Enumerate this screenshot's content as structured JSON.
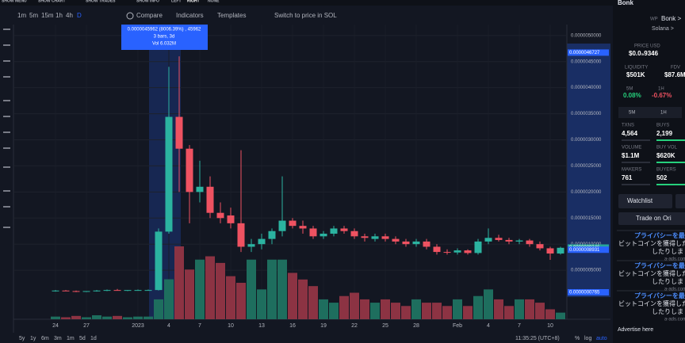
{
  "top_menu": [
    "SHOW MENU",
    "SHOW CHART",
    "SHOW TRADES",
    "SHOW INFO",
    "LEFT",
    "RIGHT",
    "NONE"
  ],
  "toolbar": {
    "intervals": [
      "1m",
      "5m",
      "15m",
      "1h",
      "4h",
      "D"
    ],
    "compare": "Compare",
    "indicators": "Indicators",
    "templates": "Templates",
    "switch": "Switch to price in SOL"
  },
  "chart_data": {
    "type": "candlestick",
    "categories": [
      "24",
      null,
      null,
      "27",
      null,
      null,
      null,
      null,
      "2023",
      null,
      null,
      "4",
      null,
      null,
      "7",
      null,
      null,
      "10",
      null,
      null,
      "13",
      null,
      null,
      "16",
      null,
      null,
      "19",
      null,
      null,
      "22",
      null,
      null,
      "25",
      null,
      null,
      "28",
      null,
      null,
      null,
      "Feb",
      null,
      null,
      "4",
      null,
      null,
      "7",
      null,
      null,
      "10",
      null
    ],
    "open": [
      1e-07,
      1.1e-07,
      1e-07,
      9e-08,
      1e-07,
      1.1e-07,
      1.2e-07,
      1.1e-07,
      1.2e-07,
      1.2e-07,
      1.2e-07,
      1.24e-06,
      3.44e-06,
      2.83e-06,
      2e-06,
      2.1e-06,
      1.6e-06,
      1.55e-06,
      1.4e-06,
      9.5e-07,
      1e-06,
      1.1e-06,
      1.25e-06,
      1.45e-06,
      1.35e-06,
      1.3e-06,
      1.15e-06,
      1.2e-06,
      1.3e-06,
      1.25e-06,
      1.15e-06,
      1.1e-06,
      1.15e-06,
      1.1e-06,
      1.05e-06,
      1e-06,
      1.05e-06,
      9.5e-07,
      8.5e-07,
      8.4e-07,
      8.8e-07,
      8.3e-07,
      1.05e-06,
      1.12e-06,
      1.08e-06,
      1.05e-06,
      1.07e-06,
      1e-06,
      9.2e-07,
      8.2e-07
    ],
    "high": [
      1.2e-07,
      1.2e-07,
      1.1e-07,
      1e-07,
      1.2e-07,
      1.3e-07,
      1.4e-07,
      1.2e-07,
      1.3e-07,
      1.3e-07,
      1.3e-06,
      4.4e-06,
      4.6e-06,
      2.9e-06,
      2.6e-06,
      2.3e-06,
      1.8e-06,
      1.7e-06,
      2.8e-06,
      1.1e-06,
      1.2e-06,
      1.3e-06,
      2.3e-06,
      1.5e-06,
      1.45e-06,
      1.35e-06,
      1.25e-06,
      1.35e-06,
      1.35e-06,
      1.3e-06,
      1.2e-06,
      1.2e-06,
      1.2e-06,
      1.15e-06,
      1.1e-06,
      1.1e-06,
      1.1e-06,
      1e-06,
      9e-07,
      9.2e-07,
      9e-07,
      1.1e-06,
      1.3e-06,
      1.18e-06,
      1.12e-06,
      1.1e-06,
      1.1e-06,
      1.05e-06,
      9.5e-07,
      9.5e-07
    ],
    "low": [
      9e-08,
      1e-07,
      8e-08,
      8e-08,
      9e-08,
      1e-07,
      1.1e-07,
      1e-07,
      1.1e-07,
      1.1e-07,
      1.1e-07,
      1.2e-06,
      2e-06,
      1.4e-06,
      1.8e-06,
      1.5e-06,
      1.4e-06,
      1.3e-06,
      8.5e-07,
      8.5e-07,
      9e-07,
      1e-06,
      1.15e-06,
      1.3e-06,
      1.2e-06,
      1.1e-06,
      1.1e-06,
      1.15e-06,
      1.2e-06,
      1.1e-06,
      1.05e-06,
      1.05e-06,
      1.05e-06,
      1e-06,
      9.5e-07,
      9.5e-07,
      9e-07,
      8e-07,
      8e-07,
      8e-07,
      8e-07,
      8e-07,
      1e-06,
      1.05e-06,
      1e-06,
      1e-06,
      9.5e-07,
      8.8e-07,
      7e-07,
      8e-07
    ],
    "close": [
      1.1e-07,
      1e-07,
      9e-08,
      1e-07,
      1.1e-07,
      1.2e-07,
      1.1e-07,
      1.2e-07,
      1.2e-07,
      1.2e-07,
      1.24e-06,
      3.44e-06,
      2.83e-06,
      2e-06,
      2.1e-06,
      1.6e-06,
      1.5e-06,
      1.4e-06,
      9.5e-07,
      1e-06,
      1.1e-06,
      1.25e-06,
      1.45e-06,
      1.35e-06,
      1.3e-06,
      1.15e-06,
      1.2e-06,
      1.3e-06,
      1.25e-06,
      1.15e-06,
      1.12e-06,
      1.15e-06,
      1.1e-06,
      1.05e-06,
      1e-06,
      1.05e-06,
      9.5e-07,
      8.5e-07,
      8.4e-07,
      8.8e-07,
      8.3e-07,
      1.05e-06,
      1.12e-06,
      1.08e-06,
      1.05e-06,
      1.07e-06,
      1e-06,
      9.2e-07,
      8.2e-07,
      9.3e-07
    ],
    "volume": [
      0.4,
      0.3,
      0.5,
      0.3,
      0.6,
      0.4,
      0.5,
      0.3,
      0.4,
      0.4,
      3.0,
      6.032,
      11.0,
      7.5,
      9.0,
      9.5,
      8.5,
      6.5,
      5.5,
      9.0,
      4.5,
      9.0,
      9.0,
      7.0,
      6.0,
      5.0,
      3.0,
      2.5,
      3.5,
      4.0,
      3.0,
      2.5,
      3.0,
      2.5,
      2.0,
      3.0,
      2.5,
      2.5,
      2.0,
      3.0,
      2.0,
      3.5,
      4.5,
      3.0,
      2.0,
      3.0,
      3.0,
      2.5,
      1.5,
      1.0
    ],
    "up_color": "#2bb3a0",
    "down_color": "#ef5261",
    "volume_up_color": "#1e6e5e",
    "volume_down_color": "#8c3343",
    "ylim": [
      -4.4e-07,
      5.21e-06
    ],
    "yticks": [
      {
        "value": 5e-07,
        "label": "0.0000005000"
      },
      {
        "value": 1e-06,
        "label": "0.0000010000"
      },
      {
        "value": 1.5e-06,
        "label": "0.0000015000"
      },
      {
        "value": 2e-06,
        "label": "0.0000020000"
      },
      {
        "value": 2.5e-06,
        "label": "0.0000025000"
      },
      {
        "value": 3e-06,
        "label": "0.0000030000"
      },
      {
        "value": 3.5e-06,
        "label": "0.0000035000"
      },
      {
        "value": 4e-06,
        "label": "0.0000040000"
      },
      {
        "value": 4.5e-06,
        "label": "0.0000045000"
      },
      {
        "value": 5e-06,
        "label": "0.0000050000"
      }
    ],
    "grid": true,
    "markers": [
      {
        "value": 4.6727e-06,
        "label": "0.0000046727",
        "color": "#2962ff"
      },
      {
        "value": 9.346e-07,
        "label": "0.0000009346",
        "color": "#26a69a"
      },
      {
        "value": 8.931e-07,
        "label": "0.0000008931",
        "color": "#2962ff"
      },
      {
        "value": 7.65e-08,
        "label": "0.0000000765",
        "color": "#2962ff"
      }
    ],
    "tooltip": [
      "0.0000045962 (8006.39%) , 45962",
      "3 bars, 3d",
      "Vol 6.032M"
    ]
  },
  "bottom_bar": {
    "ranges": [
      "5y",
      "1y",
      "6m",
      "3m",
      "1m",
      "5d",
      "1d"
    ],
    "time": "11:35:25 (UTC+8)",
    "percent": "%",
    "log": "log",
    "auto": "auto"
  },
  "panel": {
    "title": "Bonk",
    "wp": "WP",
    "token": "Bonk >",
    "chain": "Solana >",
    "price_label": "PRICE USD",
    "price": "$0.0₅9346",
    "liquidity_label": "LIQUIDITY",
    "liquidity": "$501K",
    "fdv_label": "FDV",
    "fdv": "$87.6M",
    "m5_label": "5M",
    "m5": "0.08%",
    "h1_label": "1H",
    "h1": "-0.67%",
    "tabs": [
      "5M",
      "1H"
    ],
    "stats": [
      [
        "TXNS",
        "4,564"
      ],
      [
        "BUYS",
        "2,199"
      ],
      [
        "VOLUME",
        "$1.1M"
      ],
      [
        "BUY VOL",
        "$620K"
      ],
      [
        "MAKERS",
        "761"
      ],
      [
        "BUYERS",
        "502"
      ]
    ],
    "watchlist": "Watchlist",
    "trade": "Trade on Ori",
    "ads": [
      [
        "プライバシーを最",
        "ビットコインを獲得したり",
        "したりしま",
        "a-ads.com"
      ],
      [
        "プライバシーを最",
        "ビットコインを獲得したり",
        "したりしま",
        "a-ads.com"
      ],
      [
        "プライバシーを最",
        "ビットコインを獲得したり",
        "したりしま",
        "a-ads.com"
      ]
    ],
    "advertise": "Advertise here"
  }
}
